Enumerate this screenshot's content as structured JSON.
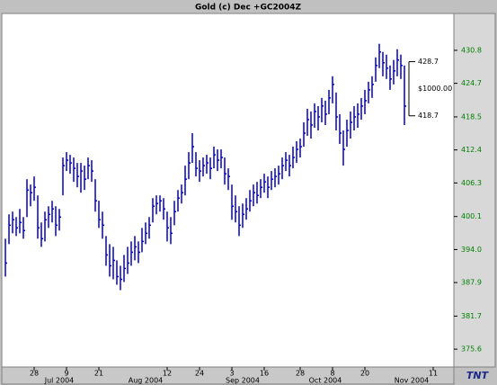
{
  "chart_data": {
    "type": "ohlc",
    "title": "Gold (c) Dec +GC2004Z",
    "logo": "TNT",
    "color": "#0000cc",
    "ylim": [
      372.3,
      437.6
    ],
    "yticks": [
      375.6,
      381.7,
      387.9,
      {
        "value": 394,
        "label": "394.0"
      },
      400.1,
      406.3,
      412.4,
      418.5,
      424.7,
      430.8
    ],
    "categories": [
      null,
      null,
      null,
      null,
      null,
      null,
      null,
      null,
      "28",
      null,
      null,
      null,
      null,
      null,
      null,
      null,
      null,
      "9",
      null,
      null,
      null,
      null,
      null,
      null,
      null,
      null,
      "21",
      null,
      null,
      null,
      null,
      null,
      null,
      null,
      null,
      null,
      null,
      null,
      null,
      null,
      null,
      null,
      null,
      null,
      null,
      "12",
      null,
      null,
      null,
      null,
      null,
      null,
      null,
      null,
      "24",
      null,
      null,
      null,
      null,
      null,
      null,
      null,
      null,
      "3",
      null,
      null,
      null,
      null,
      null,
      null,
      null,
      null,
      "16",
      null,
      null,
      null,
      null,
      null,
      null,
      null,
      null,
      null,
      "28",
      null,
      null,
      null,
      null,
      null,
      null,
      null,
      null,
      "8",
      null,
      null,
      null,
      null,
      null,
      null,
      null,
      null,
      "20",
      null,
      null,
      null,
      null,
      null,
      null,
      null,
      null,
      null,
      null,
      null,
      null,
      null,
      null,
      null,
      null,
      null,
      null,
      "11",
      null,
      null,
      null,
      null,
      null
    ],
    "months": [
      {
        "label": "Jul 2004",
        "at": 15
      },
      {
        "label": "Aug 2004",
        "at": 39
      },
      {
        "label": "Sep 2004",
        "at": 66
      },
      {
        "label": "Oct 2004",
        "at": 89
      },
      {
        "label": "Nov 2004",
        "at": 113
      }
    ],
    "high": [
      396,
      400.5,
      401,
      400,
      401.5,
      400,
      407,
      406,
      407.5,
      404,
      399,
      401,
      402,
      403,
      402,
      401.5,
      411,
      412,
      411.5,
      411,
      410,
      410,
      409.5,
      411,
      410.5,
      407,
      403,
      401,
      396.5,
      395,
      394.5,
      392,
      391,
      393,
      394.5,
      395.5,
      396.5,
      395.5,
      398,
      399,
      400,
      403.5,
      404,
      404,
      403.5,
      401,
      400,
      403,
      405,
      406,
      409.5,
      412,
      415.5,
      412,
      410.5,
      411,
      411.5,
      411,
      413,
      412.5,
      412.5,
      411,
      409,
      406,
      404,
      402,
      402.5,
      403.5,
      405,
      406,
      406.5,
      407,
      408,
      407.5,
      408.5,
      409,
      409.5,
      411,
      412,
      411.5,
      413,
      414,
      414.5,
      417.5,
      420,
      419.5,
      421,
      420.5,
      422,
      421.5,
      423.5,
      426,
      423,
      419,
      416,
      418,
      419.5,
      420.5,
      421,
      422,
      423.5,
      425,
      426,
      429.5,
      432,
      430.5,
      430,
      428,
      429,
      431,
      430,
      428,
      null,
      null,
      null,
      null,
      null,
      null,
      null,
      null,
      null,
      null,
      null,
      null,
      null
    ],
    "low": [
      389,
      395,
      397,
      396.5,
      397,
      396,
      400,
      402,
      403,
      396,
      394.5,
      395.5,
      398,
      399,
      396.5,
      397.5,
      404,
      408.5,
      408,
      406.5,
      405.5,
      404.5,
      405,
      407,
      406.5,
      401,
      398,
      396,
      391,
      389,
      388.5,
      387.5,
      386.5,
      388,
      389.5,
      391,
      392,
      391.5,
      393.5,
      395,
      396,
      399,
      400.5,
      401,
      399.5,
      395.5,
      395,
      398.5,
      401,
      402.5,
      404,
      407,
      410,
      407.5,
      406.5,
      407.5,
      408,
      407,
      409,
      408.5,
      409,
      406,
      405,
      399.5,
      399,
      396.5,
      398,
      399.5,
      401,
      402,
      402.5,
      403.5,
      404.5,
      403.5,
      405,
      405.5,
      406,
      407,
      408.5,
      407.5,
      409,
      410,
      411,
      413,
      415,
      414.5,
      416.5,
      416,
      417.5,
      417,
      419,
      421,
      416,
      413.5,
      409.5,
      413,
      414.5,
      416,
      416.5,
      418,
      419,
      421,
      422,
      425,
      427.5,
      426,
      425.5,
      423.5,
      424.5,
      426,
      425.5,
      417,
      null,
      null,
      null,
      null,
      null,
      null,
      null,
      null,
      null,
      null,
      null,
      null,
      null
    ],
    "close": [
      391.5,
      398.5,
      399.5,
      398,
      399,
      397.5,
      405,
      404.5,
      405.5,
      398,
      396,
      399.5,
      400.5,
      401.5,
      398.5,
      400,
      409.5,
      410.5,
      410,
      409,
      407.5,
      408.5,
      407,
      409.5,
      408.5,
      403,
      399.5,
      398.5,
      393,
      391,
      392,
      389,
      388.5,
      390.5,
      391.5,
      393.5,
      394.5,
      393.5,
      395.5,
      397,
      398.5,
      402,
      402.5,
      403,
      401.5,
      398,
      397,
      401,
      403.5,
      404.5,
      407,
      410,
      413,
      409,
      408.5,
      409.5,
      410,
      409,
      411.5,
      410.5,
      411,
      408,
      407.5,
      402,
      401,
      398.5,
      400.5,
      401.5,
      403,
      404.5,
      404,
      405.5,
      406.5,
      405.5,
      407,
      407.5,
      408,
      409.5,
      410.5,
      409.5,
      411,
      412.5,
      413,
      415.5,
      418,
      417,
      419.5,
      418.5,
      420.5,
      419,
      422,
      424.5,
      418.5,
      415.5,
      412.5,
      416,
      417.5,
      418.5,
      419,
      420.5,
      421.5,
      423.5,
      424.5,
      428,
      430.5,
      428.5,
      427.5,
      425.5,
      427,
      429,
      428,
      420.5,
      null,
      null,
      null,
      null,
      null,
      null,
      null,
      null,
      null,
      null,
      null,
      null,
      null
    ],
    "range_marker": {
      "high": 428.7,
      "low": 418.7,
      "label": "$1000.00"
    },
    "grid": false
  }
}
